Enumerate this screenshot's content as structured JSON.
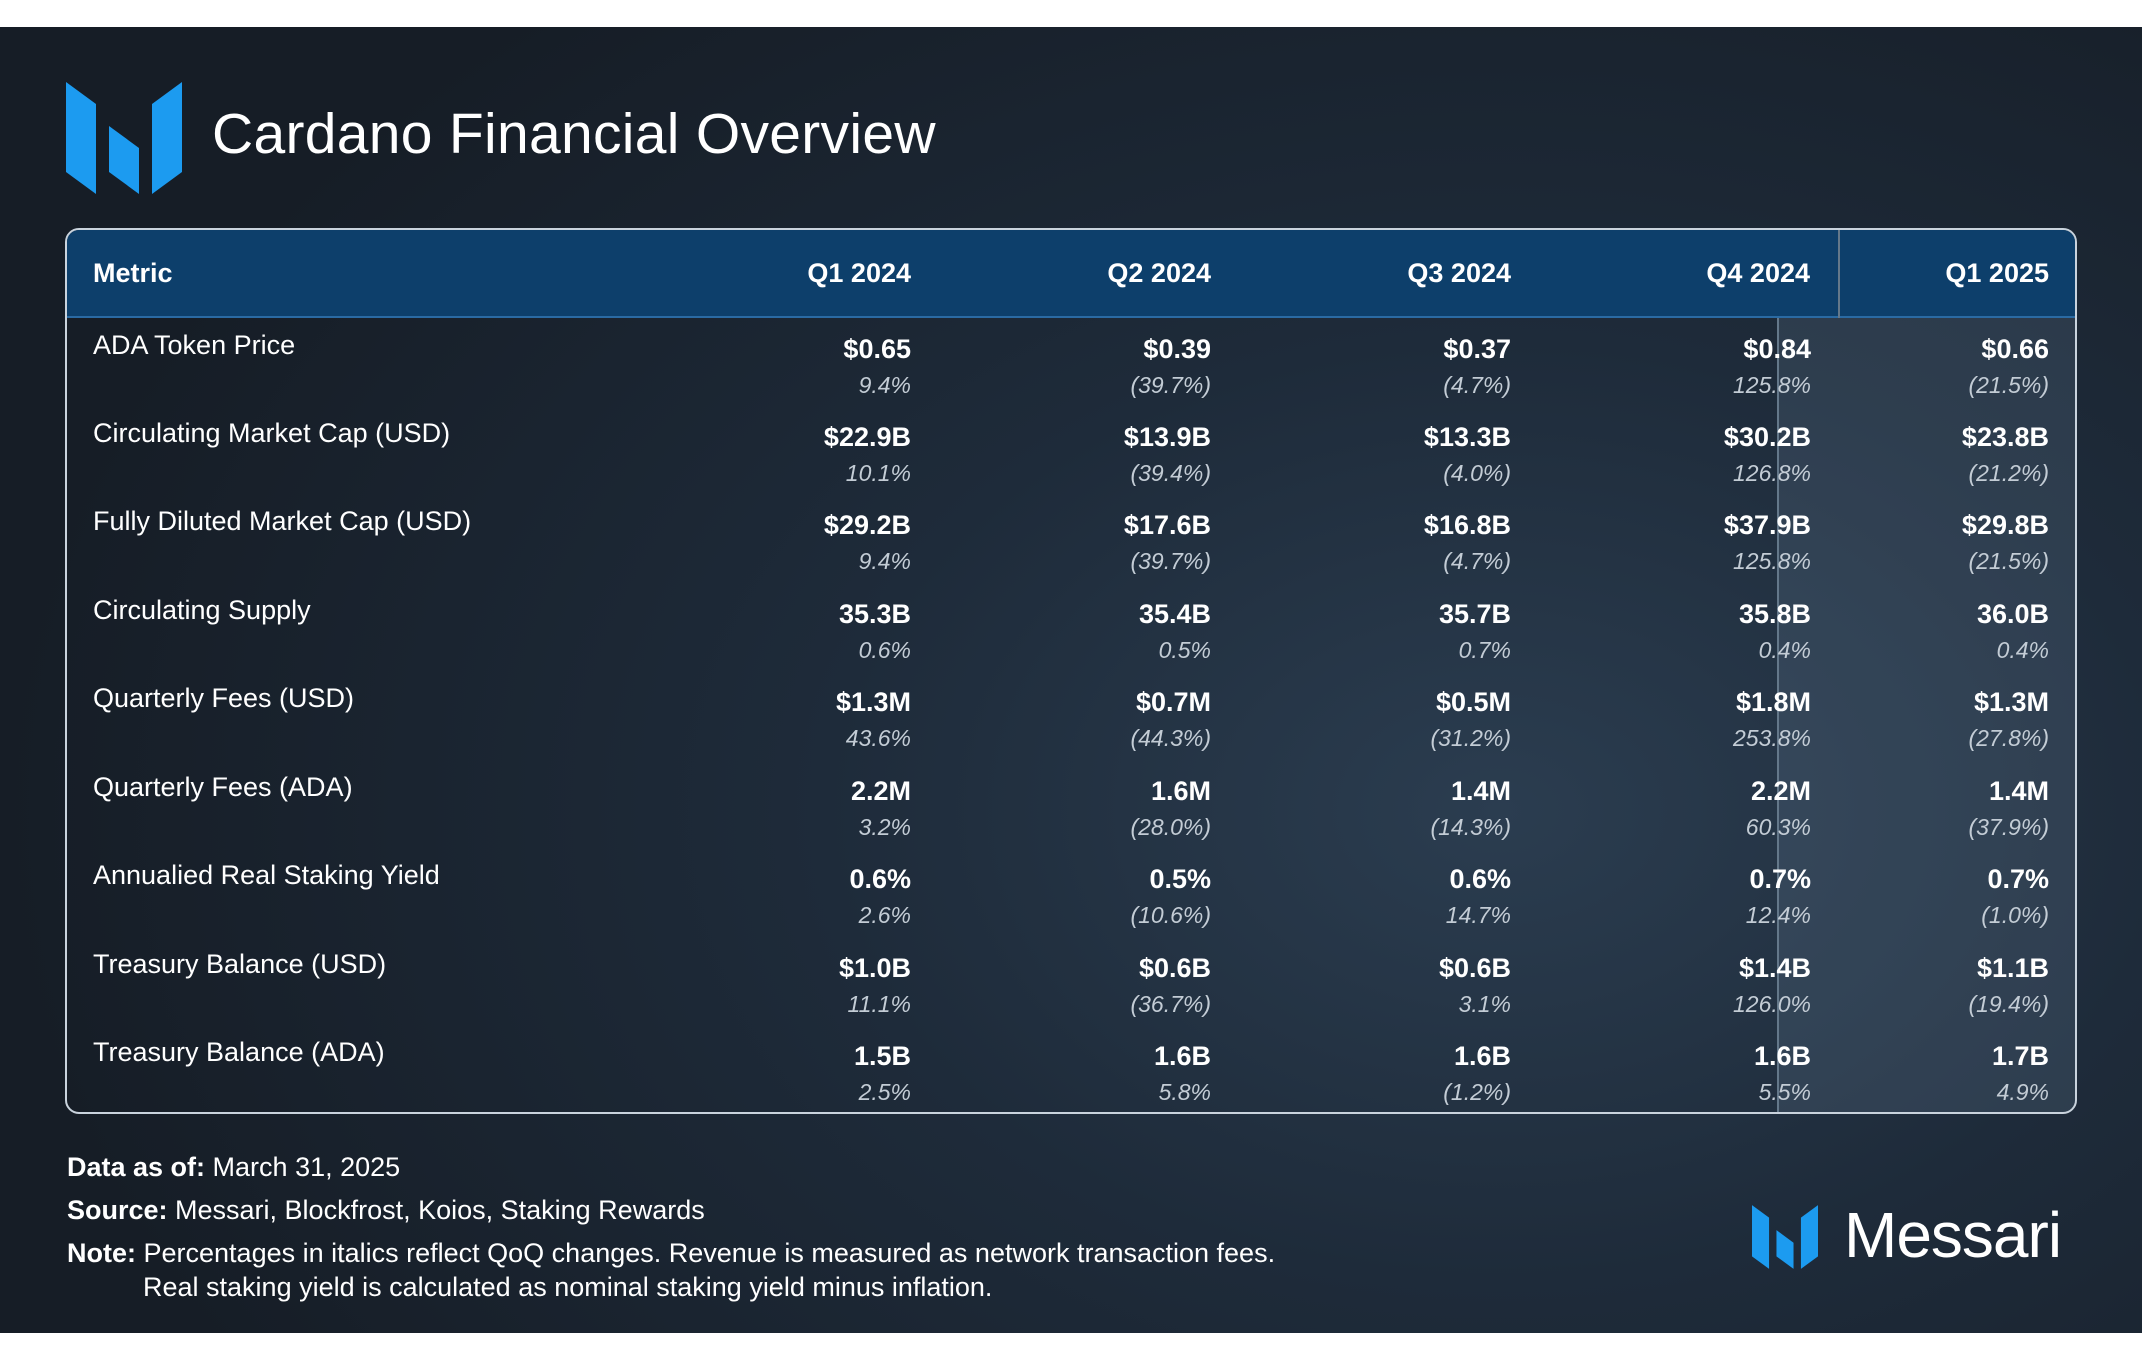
{
  "header": {
    "title": "Cardano Financial Overview"
  },
  "table": {
    "columns": [
      "Metric",
      "Q1 2024",
      "Q2 2024",
      "Q3 2024",
      "Q4 2024",
      "Q1 2025"
    ],
    "rows": [
      {
        "metric": "ADA Token Price",
        "cells": [
          {
            "value": "$0.65",
            "change": "9.4%"
          },
          {
            "value": "$0.39",
            "change": "(39.7%)"
          },
          {
            "value": "$0.37",
            "change": "(4.7%)"
          },
          {
            "value": "$0.84",
            "change": "125.8%"
          },
          {
            "value": "$0.66",
            "change": "(21.5%)"
          }
        ]
      },
      {
        "metric": "Circulating Market Cap (USD)",
        "cells": [
          {
            "value": "$22.9B",
            "change": "10.1%"
          },
          {
            "value": "$13.9B",
            "change": "(39.4%)"
          },
          {
            "value": "$13.3B",
            "change": "(4.0%)"
          },
          {
            "value": "$30.2B",
            "change": "126.8%"
          },
          {
            "value": "$23.8B",
            "change": "(21.2%)"
          }
        ]
      },
      {
        "metric": "Fully Diluted Market Cap (USD)",
        "cells": [
          {
            "value": "$29.2B",
            "change": "9.4%"
          },
          {
            "value": "$17.6B",
            "change": "(39.7%)"
          },
          {
            "value": "$16.8B",
            "change": "(4.7%)"
          },
          {
            "value": "$37.9B",
            "change": "125.8%"
          },
          {
            "value": "$29.8B",
            "change": "(21.5%)"
          }
        ]
      },
      {
        "metric": "Circulating Supply",
        "cells": [
          {
            "value": "35.3B",
            "change": "0.6%"
          },
          {
            "value": "35.4B",
            "change": "0.5%"
          },
          {
            "value": "35.7B",
            "change": "0.7%"
          },
          {
            "value": "35.8B",
            "change": "0.4%"
          },
          {
            "value": "36.0B",
            "change": "0.4%"
          }
        ]
      },
      {
        "metric": "Quarterly Fees (USD)",
        "cells": [
          {
            "value": "$1.3M",
            "change": "43.6%"
          },
          {
            "value": "$0.7M",
            "change": "(44.3%)"
          },
          {
            "value": "$0.5M",
            "change": "(31.2%)"
          },
          {
            "value": "$1.8M",
            "change": "253.8%"
          },
          {
            "value": "$1.3M",
            "change": "(27.8%)"
          }
        ]
      },
      {
        "metric": "Quarterly Fees (ADA)",
        "cells": [
          {
            "value": "2.2M",
            "change": "3.2%"
          },
          {
            "value": "1.6M",
            "change": "(28.0%)"
          },
          {
            "value": "1.4M",
            "change": "(14.3%)"
          },
          {
            "value": "2.2M",
            "change": "60.3%"
          },
          {
            "value": "1.4M",
            "change": "(37.9%)"
          }
        ]
      },
      {
        "metric": "Annualied Real Staking Yield",
        "cells": [
          {
            "value": "0.6%",
            "change": "2.6%"
          },
          {
            "value": "0.5%",
            "change": "(10.6%)"
          },
          {
            "value": "0.6%",
            "change": "14.7%"
          },
          {
            "value": "0.7%",
            "change": "12.4%"
          },
          {
            "value": "0.7%",
            "change": "(1.0%)"
          }
        ]
      },
      {
        "metric": "Treasury Balance (USD)",
        "cells": [
          {
            "value": "$1.0B",
            "change": "11.1%"
          },
          {
            "value": "$0.6B",
            "change": "(36.7%)"
          },
          {
            "value": "$0.6B",
            "change": "3.1%"
          },
          {
            "value": "$1.4B",
            "change": "126.0%"
          },
          {
            "value": "$1.1B",
            "change": "(19.4%)"
          }
        ]
      },
      {
        "metric": "Treasury Balance (ADA)",
        "cells": [
          {
            "value": "1.5B",
            "change": "2.5%"
          },
          {
            "value": "1.6B",
            "change": "5.8%"
          },
          {
            "value": "1.6B",
            "change": "(1.2%)"
          },
          {
            "value": "1.6B",
            "change": "5.5%"
          },
          {
            "value": "1.7B",
            "change": "4.9%"
          }
        ]
      }
    ]
  },
  "footer": {
    "date_label": "Data as of:",
    "date_value": " March 31, 2025",
    "source_label": "Source:",
    "source_value": " Messari, Blockfrost, Koios, Staking Rewards",
    "note_label": "Note:",
    "note_value": " Percentages in italics reflect QoQ changes. Revenue is measured as network transaction fees.",
    "note_value_2": "Real staking yield is calculated as nominal staking yield minus inflation."
  },
  "brand": {
    "name": "Messari",
    "icon": "messari-logo-icon"
  },
  "colors": {
    "header_band": "#0d3f6b",
    "logo_blue": "#1c9bf0",
    "background": "#1e2b3a"
  }
}
